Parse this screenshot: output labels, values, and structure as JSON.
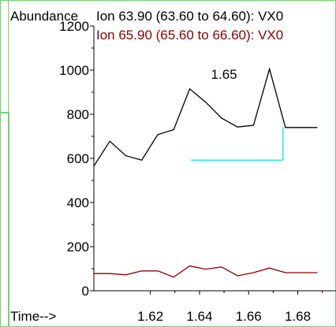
{
  "chart_data": {
    "type": "line",
    "ylabel": "Abundance",
    "xlabel": "Time-->",
    "xlim": [
      1.597,
      1.693
    ],
    "ylim": [
      0,
      1200
    ],
    "xticks": [
      "1.62",
      "1.64",
      "1.66",
      "1.68"
    ],
    "yticks": [
      "0",
      "200",
      "400",
      "600",
      "800",
      "1000",
      "1200"
    ],
    "series": [
      {
        "name": "Ion  63.90 (63.60 to 64.60): VX0",
        "color": "#000000",
        "x": [
          1.597,
          1.6035,
          1.61,
          1.6165,
          1.623,
          1.6295,
          1.636,
          1.6425,
          1.649,
          1.6555,
          1.662,
          1.6685,
          1.675,
          1.6815,
          1.688,
          1.6945
        ],
        "y": [
          565,
          678,
          612,
          592,
          708,
          730,
          915,
          855,
          782,
          742,
          750,
          1005,
          740,
          740,
          740,
          740
        ]
      },
      {
        "name": "Ion  65.90 (65.60 to 66.60): VX0",
        "color": "#8b0000",
        "x": [
          1.597,
          1.6035,
          1.61,
          1.6165,
          1.623,
          1.6295,
          1.636,
          1.6425,
          1.649,
          1.6555,
          1.662,
          1.6685,
          1.675,
          1.6815,
          1.688,
          1.6945
        ],
        "y": [
          78,
          78,
          72,
          90,
          90,
          62,
          112,
          98,
          108,
          68,
          82,
          103,
          82,
          82,
          82,
          82
        ]
      }
    ],
    "annotation": {
      "text": "1.65",
      "x": 1.65,
      "y": 960
    },
    "integration": {
      "color": "#00e5e5",
      "x_start": 1.6365,
      "x_end": 1.674,
      "y_base": 592,
      "y_end": 742
    }
  }
}
